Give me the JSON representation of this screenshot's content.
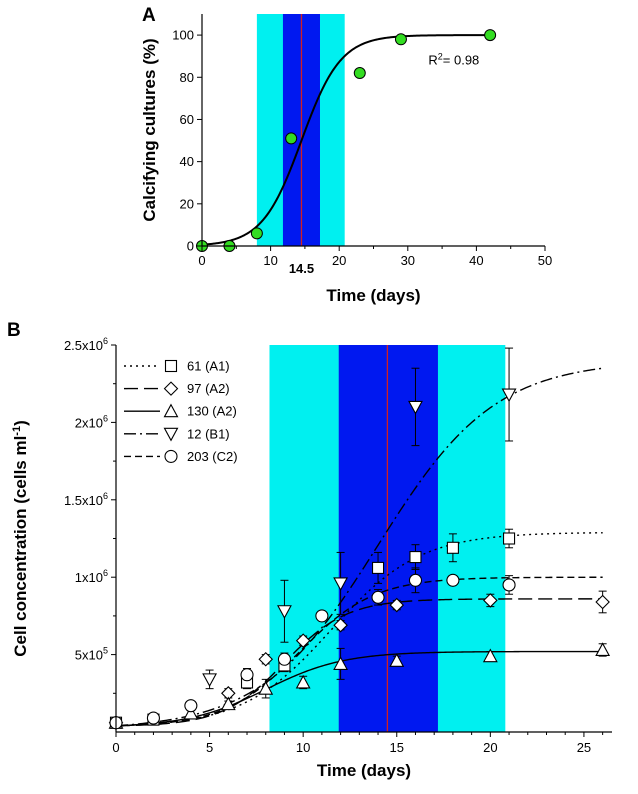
{
  "colors": {
    "light_band": "#00F0F0",
    "dark_band": "#0018F0",
    "marker_line": "#D22020",
    "marker_label": "#E01010",
    "points_a": "#33DD22"
  },
  "chart_data": [
    {
      "panel": "A",
      "type": "scatter",
      "xlabel": "Time (days)",
      "ylabel": "Calcifying cultures (%)",
      "xlim": [
        0,
        50
      ],
      "ylim": [
        0,
        110
      ],
      "xticks": [
        0,
        10,
        20,
        30,
        40,
        50
      ],
      "yticks": [
        0,
        20,
        40,
        60,
        80,
        100
      ],
      "shaded_outer": [
        8,
        20.8
      ],
      "shaded_inner": [
        11.8,
        17.2
      ],
      "vline": 14.5,
      "vline_label": "14.5",
      "annotation": {
        "text": "R",
        "sup": "2",
        "rest": "= 0.98"
      },
      "points": {
        "x": [
          0,
          4,
          8,
          13,
          23,
          29,
          42
        ],
        "y": [
          0,
          0,
          6,
          51,
          82,
          98,
          100
        ]
      },
      "fit": {
        "type": "logistic",
        "max": 100,
        "midpoint": 14.5,
        "slope": 0.35
      }
    },
    {
      "panel": "B",
      "type": "line",
      "xlabel": "Time (days)",
      "ylabel": "Cell concentration (cells ml",
      "ylabel_sup": "-1",
      "ylabel_end": ")",
      "xlim": [
        0,
        26.5
      ],
      "ylim": [
        0,
        2500000
      ],
      "xticks": [
        0,
        5,
        10,
        15,
        20,
        25
      ],
      "yticks": [
        {
          "value": 500000,
          "mant": "5x10",
          "exp": "5"
        },
        {
          "value": 1000000,
          "mant": "1x10",
          "exp": "6"
        },
        {
          "value": 1500000,
          "mant": "1.5x10",
          "exp": "6"
        },
        {
          "value": 2000000,
          "mant": "2x10",
          "exp": "6"
        },
        {
          "value": 2500000,
          "mant": "2.5x10",
          "exp": "6"
        }
      ],
      "shaded_outer": [
        8.2,
        20.8
      ],
      "shaded_inner": [
        11.9,
        17.2
      ],
      "vline": 14.5,
      "series": [
        {
          "name": "61 (A1)",
          "marker": "square",
          "dash": "2,4",
          "fit": {
            "max": 1290000,
            "mid": 11.5,
            "k": 0.42
          },
          "points": [
            {
              "x": 0,
              "y": 60000,
              "err": 15000
            },
            {
              "x": 2,
              "y": 80000,
              "err": 15000
            },
            {
              "x": 7,
              "y": 320000,
              "err": 40000
            },
            {
              "x": 9,
              "y": 430000,
              "err": 40000
            },
            {
              "x": 14,
              "y": 1060000,
              "err": 100000
            },
            {
              "x": 16,
              "y": 1130000,
              "err": 80000
            },
            {
              "x": 18,
              "y": 1190000,
              "err": 90000
            },
            {
              "x": 21,
              "y": 1250000,
              "err": 60000
            }
          ]
        },
        {
          "name": "97 (A2)",
          "marker": "diamond",
          "dash": "14,6",
          "fit": {
            "max": 860000,
            "mid": 9.0,
            "k": 0.6
          },
          "points": [
            {
              "x": 0,
              "y": 60000,
              "err": 15000
            },
            {
              "x": 6,
              "y": 250000,
              "err": 30000
            },
            {
              "x": 8,
              "y": 470000,
              "err": 30000
            },
            {
              "x": 10,
              "y": 590000,
              "err": 30000
            },
            {
              "x": 12,
              "y": 690000,
              "err": 30000
            },
            {
              "x": 15,
              "y": 820000,
              "err": 30000
            },
            {
              "x": 20,
              "y": 850000,
              "err": 40000
            },
            {
              "x": 26,
              "y": 840000,
              "err": 70000
            }
          ]
        },
        {
          "name": "130 (A2)",
          "marker": "triangle-up",
          "dash": "",
          "fit": {
            "max": 520000,
            "mid": 8.0,
            "k": 0.48
          },
          "points": [
            {
              "x": 0,
              "y": 60000,
              "err": 15000
            },
            {
              "x": 4,
              "y": 120000,
              "err": 20000
            },
            {
              "x": 6,
              "y": 180000,
              "err": 20000
            },
            {
              "x": 8,
              "y": 280000,
              "err": 60000
            },
            {
              "x": 10,
              "y": 320000,
              "err": 40000
            },
            {
              "x": 12,
              "y": 440000,
              "err": 100000
            },
            {
              "x": 15,
              "y": 460000,
              "err": 30000
            },
            {
              "x": 20,
              "y": 490000,
              "err": 30000
            },
            {
              "x": 26,
              "y": 530000,
              "err": 40000
            }
          ]
        },
        {
          "name": "12 (B1)",
          "marker": "triangle-down",
          "dash": "12,4,2,4",
          "fit": {
            "max": 2400000,
            "mid": 14.0,
            "k": 0.32
          },
          "points": [
            {
              "x": 5,
              "y": 340000,
              "err": 60000
            },
            {
              "x": 9,
              "y": 780000,
              "err": 200000
            },
            {
              "x": 12,
              "y": 960000,
              "err": 200000
            },
            {
              "x": 16,
              "y": 2100000,
              "err": 250000
            },
            {
              "x": 21,
              "y": 2180000,
              "err": 300000
            }
          ]
        },
        {
          "name": "203 (C2)",
          "marker": "circle",
          "dash": "7,4",
          "fit": {
            "max": 1000000,
            "mid": 9.8,
            "k": 0.5
          },
          "points": [
            {
              "x": 0,
              "y": 60000,
              "err": 15000
            },
            {
              "x": 2,
              "y": 90000,
              "err": 15000
            },
            {
              "x": 4,
              "y": 170000,
              "err": 20000
            },
            {
              "x": 7,
              "y": 370000,
              "err": 40000
            },
            {
              "x": 9,
              "y": 470000,
              "err": 40000
            },
            {
              "x": 11,
              "y": 750000,
              "err": 30000
            },
            {
              "x": 14,
              "y": 870000,
              "err": 50000
            },
            {
              "x": 16,
              "y": 980000,
              "err": 80000
            },
            {
              "x": 18,
              "y": 980000,
              "err": 30000
            },
            {
              "x": 21,
              "y": 950000,
              "err": 60000
            }
          ]
        }
      ]
    }
  ]
}
